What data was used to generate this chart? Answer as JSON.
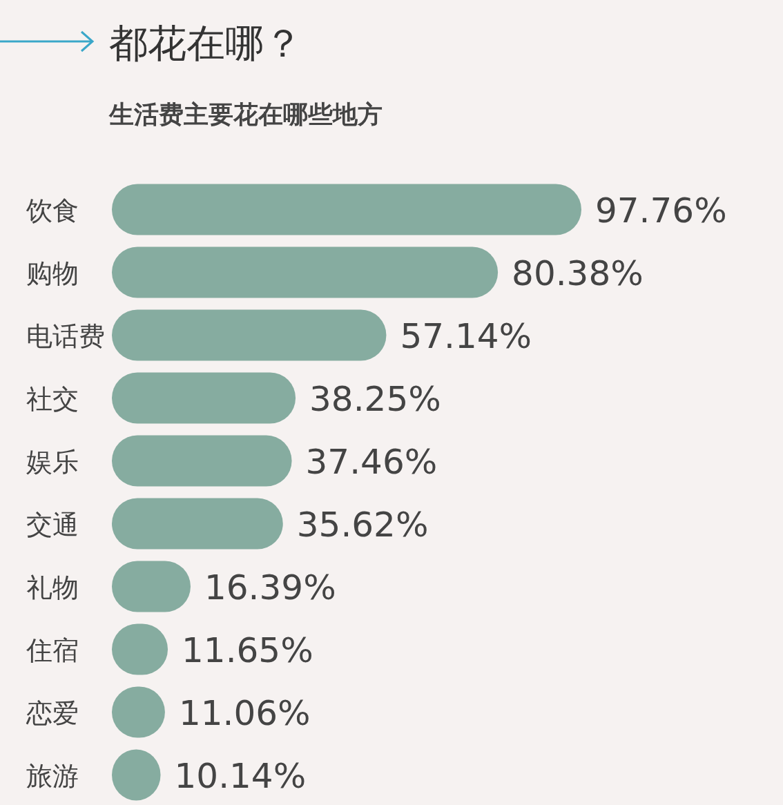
{
  "chart_data": {
    "type": "bar",
    "orientation": "horizontal",
    "title": "都花在哪？",
    "subtitle": "生活费主要花在哪些地方",
    "categories": [
      "饮食",
      "购物",
      "电话费",
      "社交",
      "娱乐",
      "交通",
      "礼物",
      "住宿",
      "恋爱",
      "旅游"
    ],
    "values": [
      97.76,
      80.38,
      57.14,
      38.25,
      37.46,
      35.62,
      16.39,
      11.65,
      11.06,
      10.14
    ],
    "value_labels": [
      "97.76%",
      "80.38%",
      "57.14%",
      "38.25%",
      "37.46%",
      "35.62%",
      "16.39%",
      "11.65%",
      "11.06%",
      "10.14%"
    ],
    "color": "#86aca0"
  }
}
